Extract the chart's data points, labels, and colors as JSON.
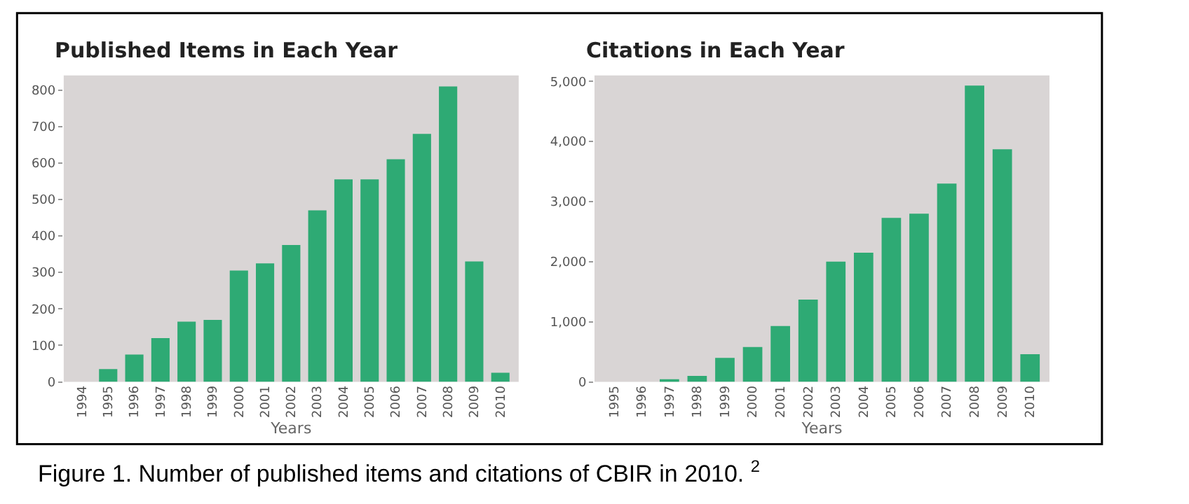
{
  "chart_data": [
    {
      "type": "bar",
      "title": "Published Items in Each Year",
      "xlabel": "Years",
      "categories": [
        "1994",
        "1995",
        "1996",
        "1997",
        "1998",
        "1999",
        "2000",
        "2001",
        "2002",
        "2003",
        "2004",
        "2005",
        "2006",
        "2007",
        "2008",
        "2009",
        "2010"
      ],
      "values": [
        0,
        35,
        75,
        120,
        165,
        170,
        305,
        325,
        375,
        470,
        555,
        555,
        610,
        680,
        810,
        330,
        25
      ],
      "color": "#2eaa74",
      "ylim": [
        0,
        840
      ],
      "yticks": [
        0,
        100,
        200,
        300,
        400,
        500,
        600,
        700,
        800
      ],
      "grid": false,
      "annotations": [
        "Figure 1. Number of published items and citations of CBIR in 2010. $^{2}$"
      ]
    },
    {
      "type": "bar",
      "title": "Citations in Each Year",
      "xlabel": "Years",
      "categories": [
        "1995",
        "1996",
        "1997",
        "1998",
        "1999",
        "2000",
        "2001",
        "2002",
        "2003",
        "2004",
        "2005",
        "2006",
        "2007",
        "2008",
        "2009",
        "2010"
      ],
      "values": [
        0,
        0,
        30,
        100,
        400,
        580,
        930,
        1370,
        2000,
        2150,
        2730,
        2800,
        3300,
        4930,
        3870,
        460
      ],
      "color": "#2eaa74",
      "ylim": [
        0,
        5100
      ],
      "yticks": [
        0,
        {
          "value": 1000,
          "label": "1,000"
        },
        {
          "value": 2000,
          "label": "2,000"
        },
        {
          "value": 3000,
          "label": "3,000"
        },
        {
          "value": 4000,
          "label": "4,000"
        },
        {
          "value": 5000,
          "label": "5,000"
        }
      ],
      "grid": false
    }
  ]
}
